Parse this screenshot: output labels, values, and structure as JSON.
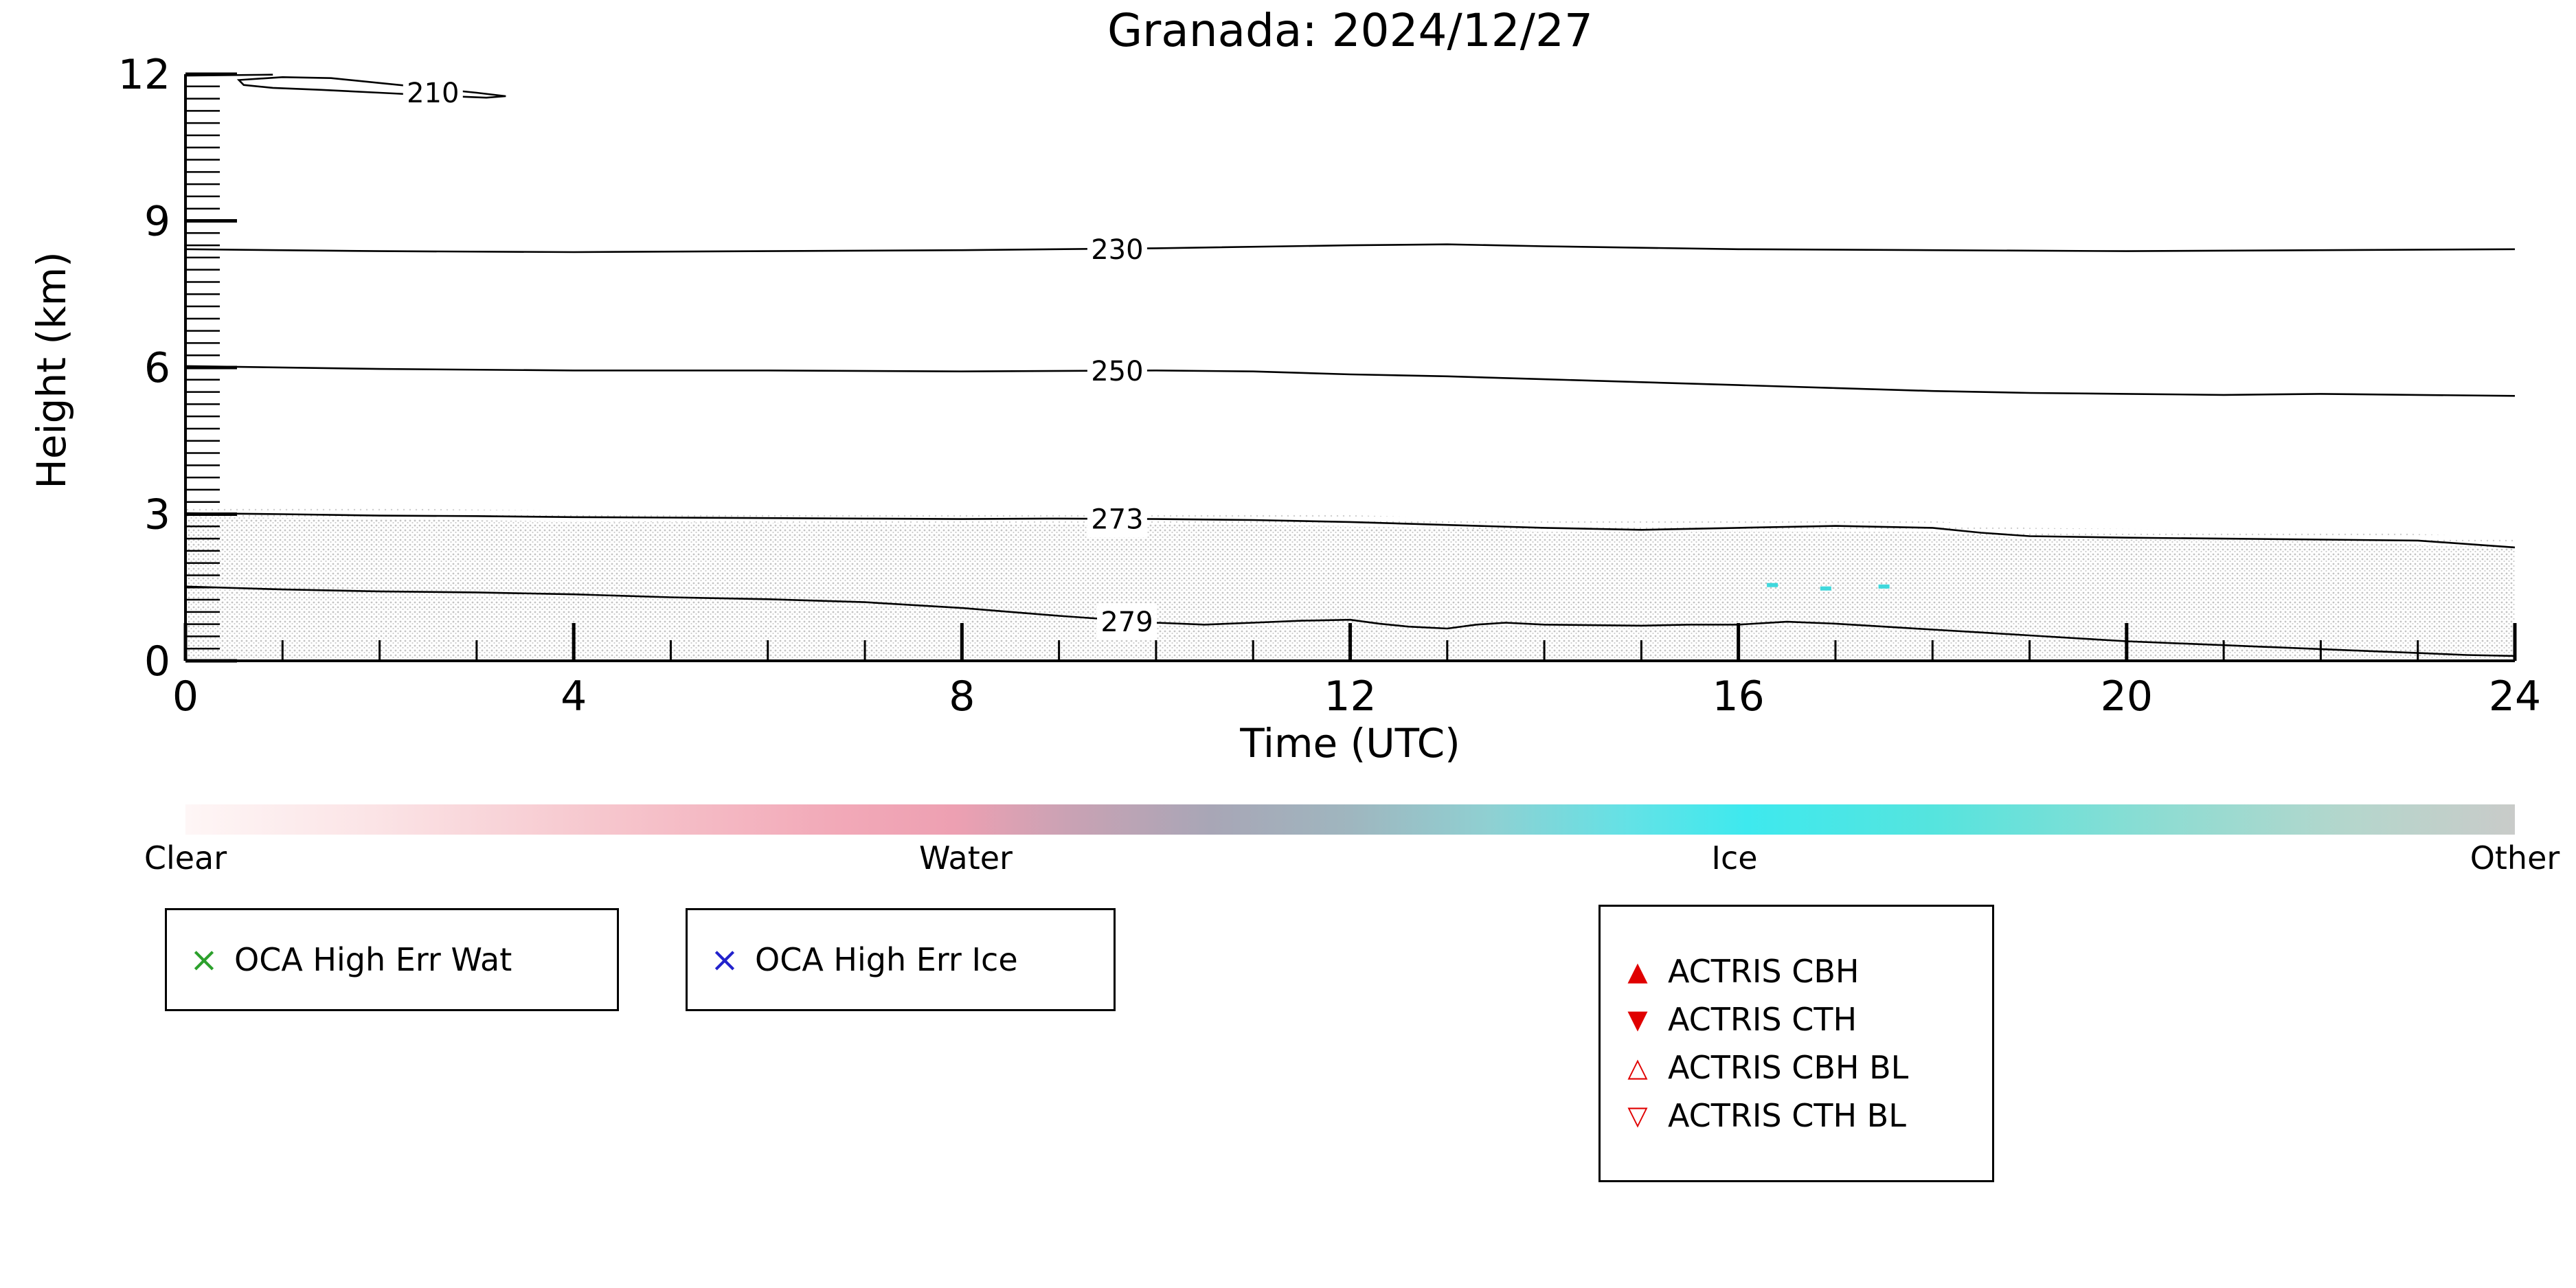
{
  "title": "Granada: 2024/12/27",
  "chart_data": {
    "type": "heatmap",
    "title": "Granada: 2024/12/27",
    "xlabel": "Time (UTC)",
    "ylabel": "Height (km)",
    "xlim": [
      0,
      24
    ],
    "ylim": [
      0,
      12
    ],
    "x_ticks": [
      0,
      4,
      8,
      12,
      16,
      20,
      24
    ],
    "y_ticks": [
      0,
      3,
      6,
      9,
      12
    ],
    "x_minor_step": 1,
    "y_minor_step": 0.25,
    "grid": false,
    "contour_levels": [
      210,
      230,
      250,
      273,
      279
    ],
    "contours": [
      {
        "label": "",
        "closed": false,
        "points": [
          [
            0,
            11.97
          ],
          [
            0.9,
            11.99
          ]
        ]
      },
      {
        "label": "210",
        "label_at": [
          2.55,
          11.62
        ],
        "closed": true,
        "points": [
          [
            0.55,
            11.88
          ],
          [
            1.0,
            11.94
          ],
          [
            1.5,
            11.92
          ],
          [
            2.0,
            11.82
          ],
          [
            2.5,
            11.72
          ],
          [
            3.0,
            11.62
          ],
          [
            3.3,
            11.55
          ],
          [
            3.1,
            11.52
          ],
          [
            2.6,
            11.56
          ],
          [
            2.0,
            11.62
          ],
          [
            1.4,
            11.68
          ],
          [
            0.9,
            11.72
          ],
          [
            0.6,
            11.78
          ]
        ]
      },
      {
        "label": "230",
        "label_at": [
          9.6,
          8.42
        ],
        "closed": false,
        "points": [
          [
            0,
            8.42
          ],
          [
            2,
            8.38
          ],
          [
            4,
            8.36
          ],
          [
            6,
            8.38
          ],
          [
            8,
            8.4
          ],
          [
            10,
            8.44
          ],
          [
            12,
            8.5
          ],
          [
            13,
            8.52
          ],
          [
            14,
            8.48
          ],
          [
            16,
            8.42
          ],
          [
            18,
            8.4
          ],
          [
            20,
            8.38
          ],
          [
            22,
            8.4
          ],
          [
            24,
            8.42
          ]
        ]
      },
      {
        "label": "250",
        "label_at": [
          9.6,
          5.93
        ],
        "closed": false,
        "points": [
          [
            0,
            6.03
          ],
          [
            2,
            5.97
          ],
          [
            4,
            5.94
          ],
          [
            6,
            5.94
          ],
          [
            8,
            5.92
          ],
          [
            10,
            5.94
          ],
          [
            11,
            5.92
          ],
          [
            12,
            5.86
          ],
          [
            13,
            5.82
          ],
          [
            14,
            5.76
          ],
          [
            15,
            5.7
          ],
          [
            16,
            5.64
          ],
          [
            17,
            5.58
          ],
          [
            18,
            5.52
          ],
          [
            19,
            5.48
          ],
          [
            20,
            5.46
          ],
          [
            21,
            5.44
          ],
          [
            22,
            5.46
          ],
          [
            23,
            5.44
          ],
          [
            24,
            5.42
          ]
        ]
      },
      {
        "label": "273",
        "label_at": [
          9.6,
          2.9
        ],
        "closed": false,
        "points": [
          [
            0,
            3.02
          ],
          [
            1,
            3.0
          ],
          [
            2,
            2.97
          ],
          [
            3,
            2.96
          ],
          [
            4,
            2.94
          ],
          [
            5,
            2.93
          ],
          [
            6,
            2.92
          ],
          [
            7,
            2.91
          ],
          [
            8,
            2.9
          ],
          [
            9,
            2.91
          ],
          [
            10,
            2.9
          ],
          [
            11,
            2.88
          ],
          [
            12,
            2.84
          ],
          [
            13,
            2.78
          ],
          [
            14,
            2.72
          ],
          [
            15,
            2.68
          ],
          [
            16,
            2.72
          ],
          [
            17,
            2.76
          ],
          [
            18,
            2.72
          ],
          [
            18.5,
            2.62
          ],
          [
            19,
            2.55
          ],
          [
            20,
            2.52
          ],
          [
            21,
            2.5
          ],
          [
            22,
            2.48
          ],
          [
            23,
            2.46
          ],
          [
            24,
            2.32
          ]
        ]
      },
      {
        "label": "279",
        "label_at": [
          9.7,
          0.8
        ],
        "closed": false,
        "points": [
          [
            0,
            1.52
          ],
          [
            1,
            1.46
          ],
          [
            2,
            1.42
          ],
          [
            3,
            1.4
          ],
          [
            4,
            1.36
          ],
          [
            5,
            1.3
          ],
          [
            6,
            1.26
          ],
          [
            7,
            1.2
          ],
          [
            8,
            1.08
          ],
          [
            8.5,
            1.0
          ],
          [
            9,
            0.92
          ],
          [
            9.5,
            0.85
          ],
          [
            10,
            0.78
          ],
          [
            10.5,
            0.74
          ],
          [
            11,
            0.78
          ],
          [
            11.5,
            0.82
          ],
          [
            12,
            0.84
          ],
          [
            12.3,
            0.76
          ],
          [
            12.6,
            0.7
          ],
          [
            13,
            0.66
          ],
          [
            13.3,
            0.74
          ],
          [
            13.6,
            0.78
          ],
          [
            14,
            0.74
          ],
          [
            15,
            0.72
          ],
          [
            15.5,
            0.74
          ],
          [
            16,
            0.74
          ],
          [
            16.5,
            0.8
          ],
          [
            17,
            0.76
          ],
          [
            17.5,
            0.7
          ],
          [
            18,
            0.64
          ],
          [
            18.5,
            0.58
          ],
          [
            19,
            0.52
          ],
          [
            19.5,
            0.46
          ],
          [
            20,
            0.4
          ],
          [
            20.5,
            0.36
          ],
          [
            21,
            0.32
          ],
          [
            21.5,
            0.28
          ],
          [
            22,
            0.24
          ],
          [
            22.5,
            0.2
          ],
          [
            23,
            0.16
          ],
          [
            23.5,
            0.12
          ],
          [
            24,
            0.1
          ]
        ]
      }
    ],
    "region": {
      "classification": "Other",
      "color": "#c8c8c8",
      "top": [
        [
          0,
          2.95
        ],
        [
          2,
          2.9
        ],
        [
          4,
          2.85
        ],
        [
          6,
          2.82
        ],
        [
          8,
          2.8
        ],
        [
          10,
          2.8
        ],
        [
          12,
          2.76
        ],
        [
          14,
          2.65
        ],
        [
          16,
          2.66
        ],
        [
          18,
          2.64
        ],
        [
          19,
          2.5
        ],
        [
          20,
          2.48
        ],
        [
          22,
          2.45
        ],
        [
          24,
          2.3
        ]
      ]
    },
    "ice_specks": {
      "color": "#3fd8dc",
      "points": [
        [
          16.35,
          1.55
        ],
        [
          16.9,
          1.48
        ],
        [
          17.5,
          1.52
        ]
      ]
    },
    "colorbar": {
      "labels": [
        "Clear",
        "Water",
        "Ice",
        "Other"
      ],
      "label_positions_pct": [
        0,
        33.5,
        66.5,
        100
      ],
      "stops": [
        {
          "pos": 0,
          "color": "#fef6f6"
        },
        {
          "pos": 8,
          "color": "#fbe4e6"
        },
        {
          "pos": 18,
          "color": "#f6c6cd"
        },
        {
          "pos": 28,
          "color": "#f2a9b8"
        },
        {
          "pos": 33,
          "color": "#eda0b2"
        },
        {
          "pos": 38,
          "color": "#c9a2b4"
        },
        {
          "pos": 44,
          "color": "#a8a6b6"
        },
        {
          "pos": 50,
          "color": "#9fb6bf"
        },
        {
          "pos": 56,
          "color": "#8fd0d2"
        },
        {
          "pos": 62,
          "color": "#63e2e6"
        },
        {
          "pos": 67,
          "color": "#3ee9ee"
        },
        {
          "pos": 75,
          "color": "#55e4de"
        },
        {
          "pos": 85,
          "color": "#8fdcd2"
        },
        {
          "pos": 93,
          "color": "#b5d6cc"
        },
        {
          "pos": 100,
          "color": "#c9cbc9"
        }
      ]
    }
  },
  "legend_boxes": [
    {
      "items": [
        {
          "symbol": "×",
          "color": "#2ca02c",
          "label": "OCA High Err Wat"
        }
      ]
    },
    {
      "items": [
        {
          "symbol": "×",
          "color": "#2222cc",
          "label": "OCA High Err Ice"
        }
      ]
    },
    {
      "items": [
        {
          "symbol": "▲",
          "color": "#e00000",
          "label": "ACTRIS CBH"
        },
        {
          "symbol": "▼",
          "color": "#e00000",
          "label": "ACTRIS CTH"
        },
        {
          "symbol": "△",
          "color": "#e00000",
          "label": "ACTRIS CBH BL"
        },
        {
          "symbol": "▽",
          "color": "#e00000",
          "label": "ACTRIS CTH BL"
        }
      ]
    }
  ]
}
